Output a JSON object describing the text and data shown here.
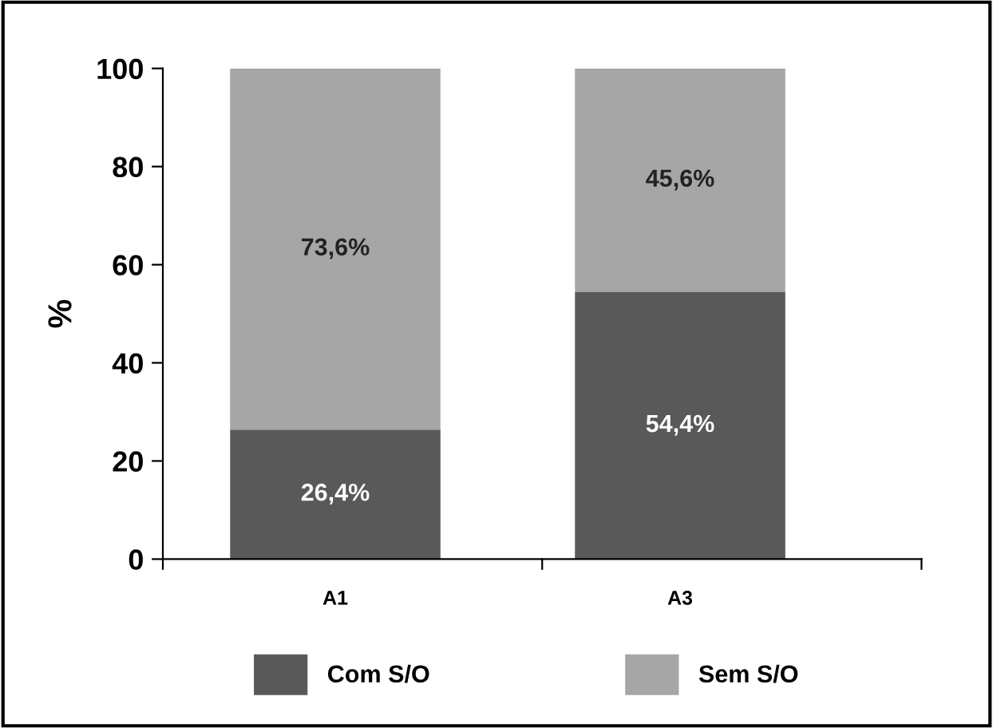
{
  "chart_data": {
    "type": "bar",
    "stacked": true,
    "ylabel": "%",
    "categories": [
      "A1",
      "A3"
    ],
    "series": [
      {
        "name": "Com S/O",
        "color": "#595959",
        "values": [
          26.4,
          54.4
        ],
        "value_labels": [
          "26,4%",
          "54,4%"
        ]
      },
      {
        "name": "Sem S/O",
        "color": "#a6a6a6",
        "values": [
          73.6,
          45.6
        ],
        "value_labels": [
          "73,6%",
          "45,6%"
        ]
      }
    ],
    "ylim": [
      0,
      100
    ],
    "yticks": [
      0,
      20,
      40,
      60,
      80,
      100
    ],
    "legend": "bottom",
    "grid": false
  }
}
